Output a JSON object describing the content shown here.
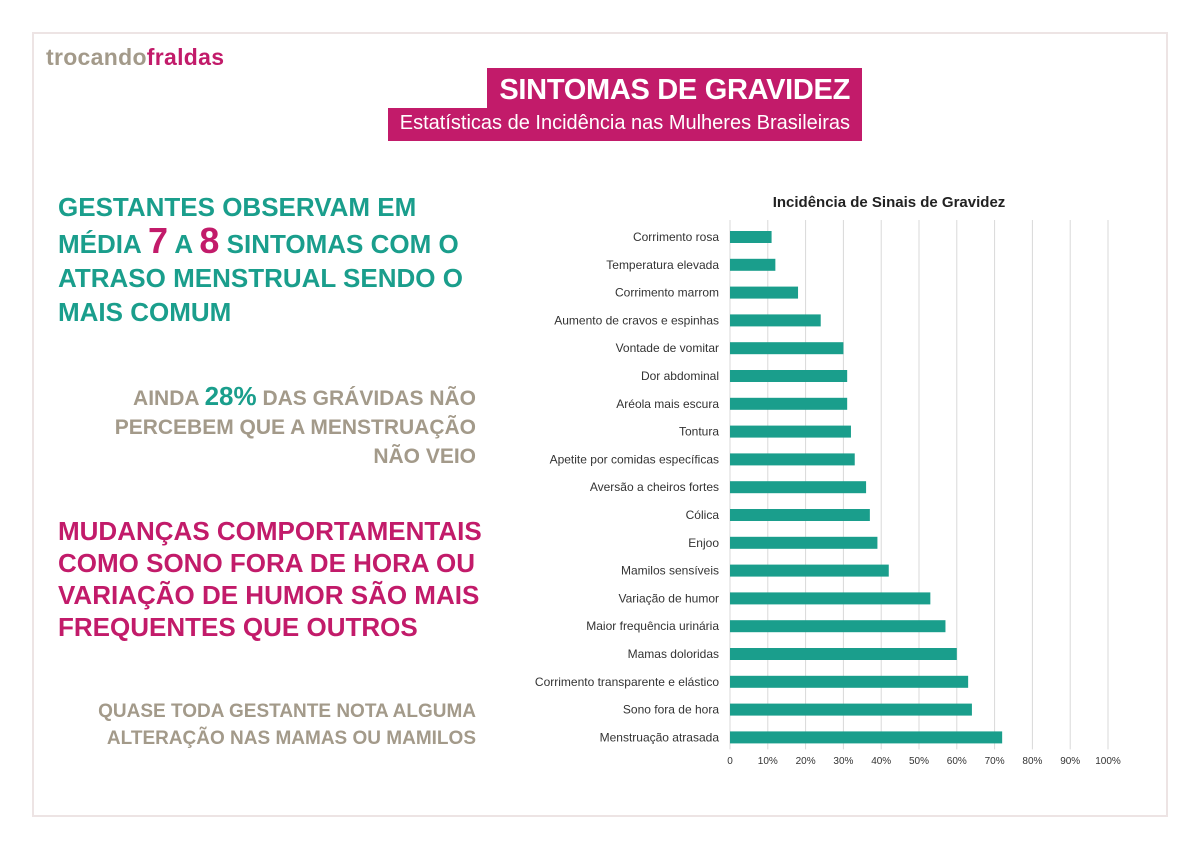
{
  "logo": {
    "part1": "trocando",
    "part2": "fraldas"
  },
  "header": {
    "title": "SINTOMAS DE GRAVIDEZ",
    "subtitle": "Estatísticas de Incidência nas Mulheres Brasileiras"
  },
  "text_blocks": {
    "b1_line1": "GESTANTES OBSERVAM EM",
    "b1_pre": "MÉDIA ",
    "b1_num1": "7",
    "b1_mid": " A ",
    "b1_num2": "8",
    "b1_post": " SINTOMAS COM O",
    "b1_line3": "ATRASO MENSTRUAL SENDO O",
    "b1_line4": "MAIS COMUM",
    "b2_pre": "AINDA ",
    "b2_pct": "28%",
    "b2_post": " DAS GRÁVIDAS NÃO",
    "b2_line2": "PERCEBEM QUE A MENSTRUAÇÃO",
    "b2_line3": "NÃO VEIO",
    "b3_line1": "MUDANÇAS COMPORTAMENTAIS",
    "b3_line2": "COMO SONO FORA DE HORA OU",
    "b3_line3": "VARIAÇÃO DE HUMOR SÃO MAIS",
    "b3_line4": "FREQUENTES QUE OUTROS",
    "b4_line1": "QUASE TODA GESTANTE NOTA ALGUMA",
    "b4_line2": "ALTERAÇÃO NAS MAMAS OU MAMILOS"
  },
  "colors": {
    "teal": "#1a9e8c",
    "magenta": "#c21b6a",
    "taupe": "#a39a8a",
    "grid": "#d9d9d9"
  },
  "chart_data": {
    "type": "bar",
    "orientation": "horizontal",
    "title": "Incidência de Sinais de Gravidez",
    "categories": [
      "Corrimento rosa",
      "Temperatura elevada",
      "Corrimento marrom",
      "Aumento de cravos e espinhas",
      "Vontade de vomitar",
      "Dor abdominal",
      "Aréola mais escura",
      "Tontura",
      "Apetite por comidas específicas",
      "Aversão a cheiros fortes",
      "Cólica",
      "Enjoo",
      "Mamilos sensíveis",
      "Variação de humor",
      "Maior frequência urinária",
      "Mamas doloridas",
      "Corrimento transparente e elástico",
      "Sono fora de hora",
      "Menstruação atrasada"
    ],
    "values": [
      11,
      12,
      18,
      24,
      30,
      31,
      31,
      32,
      33,
      36,
      37,
      39,
      42,
      53,
      57,
      60,
      63,
      64,
      72
    ],
    "xlim": [
      0,
      100
    ],
    "xticks": [
      "0",
      "10%",
      "20%",
      "30%",
      "40%",
      "50%",
      "60%",
      "70%",
      "80%",
      "90%",
      "100%"
    ],
    "grid": true,
    "bar_color": "#1a9e8c"
  }
}
